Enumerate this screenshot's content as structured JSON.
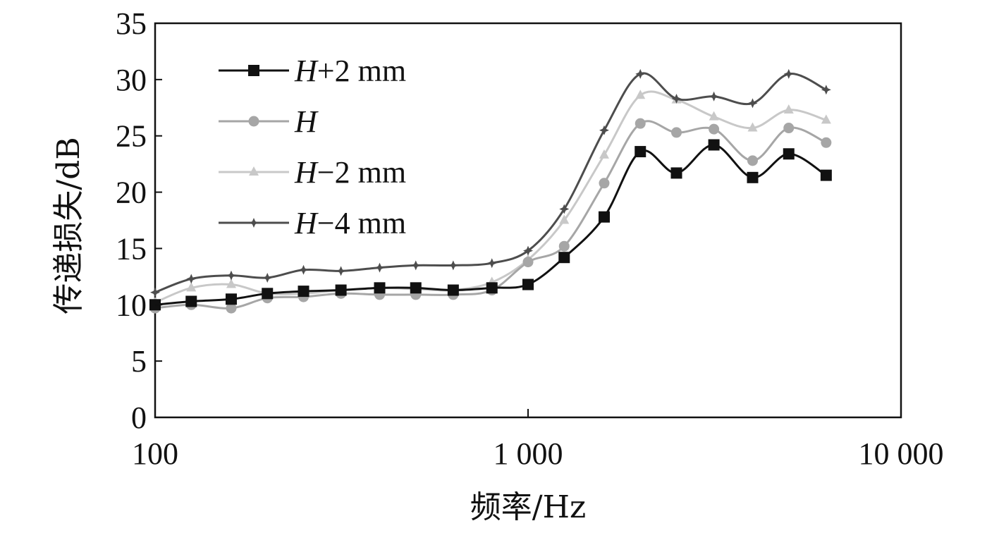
{
  "chart_data": {
    "type": "line",
    "xlabel": "频率/Hz",
    "ylabel": "传递损失/dB",
    "xscale": "log",
    "xlim": [
      100,
      10000
    ],
    "ylim": [
      0,
      35
    ],
    "grid": false,
    "legend_position": "top-left",
    "x_ticks": [
      {
        "value": 100,
        "label": "100"
      },
      {
        "value": 1000,
        "label": "1 000"
      },
      {
        "value": 10000,
        "label": "10 000"
      }
    ],
    "y_ticks": [
      {
        "value": 0,
        "label": "0"
      },
      {
        "value": 5,
        "label": "5"
      },
      {
        "value": 10,
        "label": "10"
      },
      {
        "value": 15,
        "label": "15"
      },
      {
        "value": 20,
        "label": "20"
      },
      {
        "value": 25,
        "label": "25"
      },
      {
        "value": 30,
        "label": "30"
      },
      {
        "value": 35,
        "label": "35"
      }
    ],
    "x": [
      100,
      125,
      160,
      200,
      250,
      315,
      400,
      500,
      630,
      800,
      1000,
      1250,
      1600,
      2000,
      2500,
      3150,
      4000,
      5000,
      6300
    ],
    "series": [
      {
        "name_italic": "H",
        "name_rest": "+2 mm",
        "color": "#111111",
        "marker": "square",
        "values": [
          10.0,
          10.3,
          10.5,
          11.0,
          11.2,
          11.3,
          11.5,
          11.5,
          11.3,
          11.5,
          11.8,
          14.2,
          17.8,
          23.6,
          21.7,
          24.2,
          21.3,
          23.4,
          21.5
        ]
      },
      {
        "name_italic": "H",
        "name_rest": "",
        "color": "#a6a6a6",
        "marker": "circle",
        "values": [
          9.7,
          10.0,
          9.7,
          10.6,
          10.7,
          11.0,
          10.9,
          10.9,
          10.9,
          11.3,
          13.8,
          15.2,
          20.8,
          26.1,
          25.3,
          25.6,
          22.8,
          25.7,
          24.4
        ]
      },
      {
        "name_italic": "H",
        "name_rest": "−2 mm",
        "color": "#c8c8c8",
        "marker": "triangle",
        "values": [
          10.2,
          11.5,
          11.8,
          11.0,
          11.0,
          11.3,
          11.5,
          11.4,
          11.3,
          12.0,
          14.0,
          17.5,
          23.3,
          28.6,
          28.2,
          26.7,
          25.7,
          27.3,
          26.4
        ]
      },
      {
        "name_italic": "H",
        "name_rest": "−4 mm",
        "color": "#4d4d4d",
        "marker": "star",
        "values": [
          11.1,
          12.3,
          12.6,
          12.4,
          13.1,
          13.0,
          13.3,
          13.5,
          13.5,
          13.7,
          14.8,
          18.5,
          25.5,
          30.5,
          28.3,
          28.5,
          27.9,
          30.5,
          29.1
        ]
      }
    ]
  }
}
